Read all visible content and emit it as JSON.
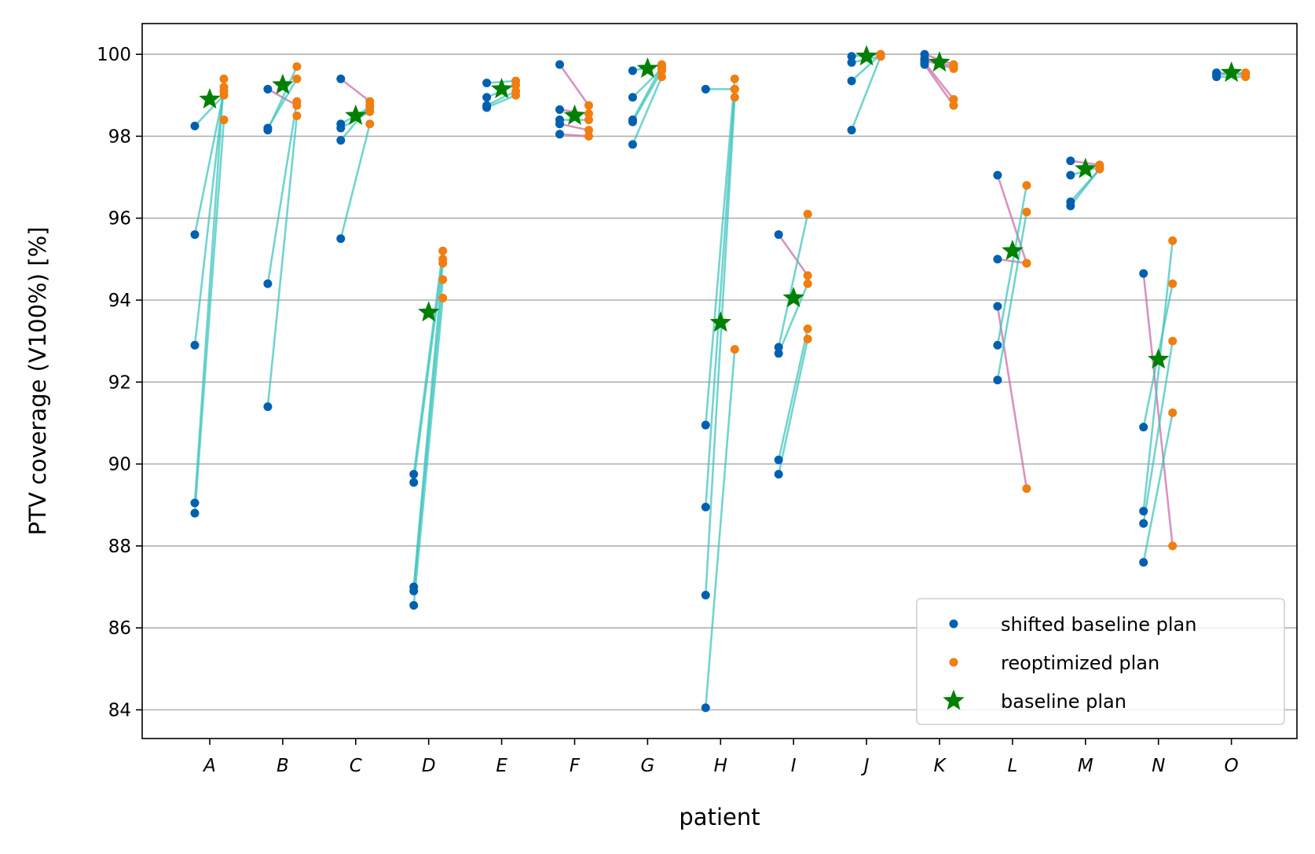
{
  "chart_data": {
    "type": "scatter",
    "xlabel": "patient",
    "ylabel": "PTV coverage (V100%) [%]",
    "ylim": [
      83.3,
      100.75
    ],
    "yticks": [
      84,
      86,
      88,
      90,
      92,
      94,
      96,
      98,
      100
    ],
    "grid": "horizontal",
    "legend_position": "bottom-right",
    "categories": [
      "A",
      "B",
      "C",
      "D",
      "E",
      "F",
      "G",
      "H",
      "I",
      "J",
      "K",
      "L",
      "M",
      "N",
      "O"
    ],
    "series": [
      {
        "name": "shifted baseline plan",
        "color": "#0060b0",
        "marker": "dot"
      },
      {
        "name": "reoptimized plan",
        "color": "#f07e10",
        "marker": "dot"
      },
      {
        "name": "baseline plan",
        "color": "#008000",
        "marker": "star"
      }
    ],
    "line_colors": {
      "improved": "#3cc3bd",
      "worsened": "#c96aa8"
    },
    "patients": [
      {
        "id": "A",
        "baseline": 98.9,
        "pairs": [
          [
            98.25,
            99.0
          ],
          [
            95.6,
            99.1
          ],
          [
            92.9,
            99.2
          ],
          [
            89.05,
            99.4
          ],
          [
            88.8,
            98.4
          ]
        ]
      },
      {
        "id": "B",
        "baseline": 99.25,
        "pairs": [
          [
            99.15,
            98.75
          ],
          [
            98.2,
            99.4
          ],
          [
            98.15,
            99.7
          ],
          [
            94.4,
            98.85
          ],
          [
            91.4,
            98.5
          ]
        ]
      },
      {
        "id": "C",
        "baseline": 98.5,
        "pairs": [
          [
            99.4,
            98.85
          ],
          [
            98.3,
            98.7
          ],
          [
            98.2,
            98.6
          ],
          [
            97.9,
            98.75
          ],
          [
            95.5,
            98.3
          ]
        ]
      },
      {
        "id": "D",
        "baseline": 93.7,
        "pairs": [
          [
            89.75,
            95.2
          ],
          [
            89.55,
            95.0
          ],
          [
            87.0,
            94.9
          ],
          [
            86.9,
            94.5
          ],
          [
            86.55,
            94.05
          ]
        ]
      },
      {
        "id": "E",
        "baseline": 99.15,
        "pairs": [
          [
            99.3,
            99.35
          ],
          [
            98.95,
            99.25
          ],
          [
            98.75,
            99.1
          ],
          [
            98.7,
            99.0
          ]
        ]
      },
      {
        "id": "F",
        "baseline": 98.5,
        "pairs": [
          [
            99.75,
            98.75
          ],
          [
            98.65,
            98.55
          ],
          [
            98.4,
            98.4
          ],
          [
            98.3,
            98.15
          ],
          [
            98.05,
            98.0
          ]
        ]
      },
      {
        "id": "G",
        "baseline": 99.65,
        "pairs": [
          [
            99.6,
            99.75
          ],
          [
            98.95,
            99.65
          ],
          [
            98.4,
            99.7
          ],
          [
            98.35,
            99.6
          ],
          [
            97.8,
            99.45
          ]
        ]
      },
      {
        "id": "H",
        "baseline": 93.45,
        "pairs": [
          [
            99.15,
            99.15
          ],
          [
            90.95,
            99.4
          ],
          [
            88.95,
            99.15
          ],
          [
            86.8,
            98.95
          ],
          [
            84.05,
            92.8
          ]
        ]
      },
      {
        "id": "I",
        "baseline": 94.05,
        "pairs": [
          [
            95.6,
            94.6
          ],
          [
            92.85,
            96.1
          ],
          [
            92.7,
            94.4
          ],
          [
            90.1,
            93.3
          ],
          [
            89.75,
            93.05
          ]
        ]
      },
      {
        "id": "J",
        "baseline": 99.95,
        "pairs": [
          [
            99.95,
            100.0
          ],
          [
            99.8,
            99.95
          ],
          [
            99.35,
            100.0
          ],
          [
            98.15,
            99.95
          ]
        ]
      },
      {
        "id": "K",
        "baseline": 99.8,
        "pairs": [
          [
            100.0,
            99.75
          ],
          [
            99.9,
            99.7
          ],
          [
            99.85,
            99.65
          ],
          [
            99.8,
            98.9
          ],
          [
            99.75,
            98.75
          ]
        ]
      },
      {
        "id": "L",
        "baseline": 95.2,
        "pairs": [
          [
            97.05,
            94.9
          ],
          [
            95.0,
            94.9
          ],
          [
            93.85,
            89.4
          ],
          [
            92.9,
            96.8
          ],
          [
            92.05,
            96.15
          ]
        ]
      },
      {
        "id": "M",
        "baseline": 97.2,
        "pairs": [
          [
            97.4,
            97.3
          ],
          [
            97.05,
            97.25
          ],
          [
            96.4,
            97.2
          ],
          [
            96.3,
            97.2
          ]
        ]
      },
      {
        "id": "N",
        "baseline": 92.55,
        "pairs": [
          [
            94.65,
            88.0
          ],
          [
            90.9,
            94.4
          ],
          [
            88.85,
            95.45
          ],
          [
            88.55,
            93.0
          ],
          [
            87.6,
            91.25
          ]
        ]
      },
      {
        "id": "O",
        "baseline": 99.55,
        "pairs": [
          [
            99.55,
            99.5
          ],
          [
            99.5,
            99.55
          ],
          [
            99.45,
            99.45
          ]
        ]
      }
    ]
  }
}
